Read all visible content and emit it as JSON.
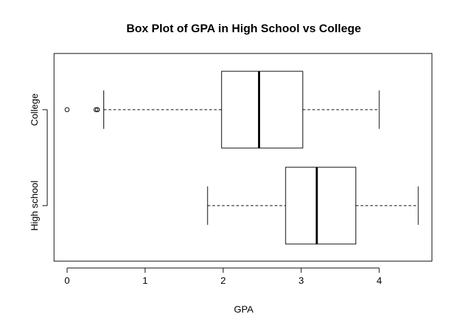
{
  "chart_data": {
    "type": "boxplot",
    "orientation": "horizontal",
    "title": "Box Plot of GPA in High School vs College",
    "xlabel": "GPA",
    "ylabel": "",
    "xlim": [
      0,
      4.5
    ],
    "x_ticks": [
      0,
      1,
      2,
      3,
      4
    ],
    "grid": false,
    "categories": [
      "High school",
      "College"
    ],
    "boxes": [
      {
        "category": "High school",
        "whisker_low": 1.8,
        "q1": 2.8,
        "median": 3.2,
        "q3": 3.7,
        "whisker_high": 4.5,
        "outliers": []
      },
      {
        "category": "College",
        "whisker_low": 0.47,
        "q1": 1.98,
        "median": 2.46,
        "q3": 3.02,
        "whisker_high": 4.0,
        "outliers": [
          0.0,
          0.37,
          0.39
        ]
      }
    ],
    "colors": {
      "line": "#000000",
      "box_fill": "#ffffff",
      "background": "#ffffff"
    }
  }
}
